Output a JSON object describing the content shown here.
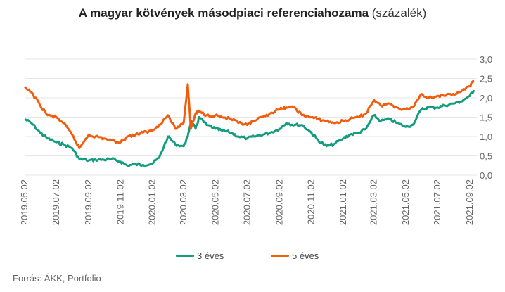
{
  "title": {
    "bold": "A magyar kötvények másodpiaci referenciahozama",
    "light": "(százalék)"
  },
  "source": "Forrás: ÁKK, Portfolio",
  "colors": {
    "series_3y": "#139c7e",
    "series_5y": "#f05d0e",
    "grid": "#e6e6e6",
    "text": "#666666"
  },
  "chart_data": {
    "type": "line",
    "title": "A magyar kötvények másodpiaci referenciahozama (százalék)",
    "xlabel": "",
    "ylabel": "",
    "ylim": [
      0,
      3
    ],
    "y_ticks": [
      "3,0",
      "2,5",
      "2,0",
      "1,5",
      "1,0",
      "0,5",
      "0,0"
    ],
    "x_ticks": [
      "2019.05.02",
      "2019.07.02",
      "2019.09.02",
      "2019.11.02",
      "2020.01.02",
      "2020.03.02",
      "2020.05.02",
      "2020.07.02",
      "2020.09.02",
      "2020.11.02",
      "2021.01.02",
      "2021.03.02",
      "2021.05.02",
      "2021.07.02",
      "2021.09.02"
    ],
    "grid": true,
    "legend_position": "bottom",
    "series": [
      {
        "name": "3 éves",
        "x": [
          "2019.05.02",
          "2019.05.15",
          "2019.06.01",
          "2019.06.15",
          "2019.07.02",
          "2019.07.15",
          "2019.08.01",
          "2019.08.15",
          "2019.09.02",
          "2019.09.15",
          "2019.10.01",
          "2019.10.15",
          "2019.11.02",
          "2019.11.15",
          "2019.12.01",
          "2019.12.15",
          "2020.01.02",
          "2020.01.15",
          "2020.02.01",
          "2020.02.15",
          "2020.03.02",
          "2020.03.10",
          "2020.03.16",
          "2020.03.25",
          "2020.04.01",
          "2020.04.15",
          "2020.05.02",
          "2020.05.15",
          "2020.06.01",
          "2020.06.15",
          "2020.07.02",
          "2020.07.15",
          "2020.08.01",
          "2020.08.15",
          "2020.09.02",
          "2020.09.15",
          "2020.10.01",
          "2020.10.15",
          "2020.11.02",
          "2020.11.15",
          "2020.12.01",
          "2020.12.15",
          "2021.01.02",
          "2021.01.15",
          "2021.02.01",
          "2021.02.15",
          "2021.03.02",
          "2021.03.15",
          "2021.04.01",
          "2021.04.15",
          "2021.05.02",
          "2021.05.15",
          "2021.06.01",
          "2021.06.15",
          "2021.07.02",
          "2021.07.15",
          "2021.08.01",
          "2021.08.15",
          "2021.09.02",
          "2021.09.10"
        ],
        "values": [
          1.45,
          1.35,
          1.1,
          0.95,
          0.85,
          0.8,
          0.7,
          0.42,
          0.38,
          0.4,
          0.4,
          0.42,
          0.35,
          0.25,
          0.28,
          0.27,
          0.3,
          0.45,
          1.0,
          0.8,
          0.75,
          1.0,
          1.4,
          1.2,
          1.5,
          1.3,
          1.2,
          1.15,
          1.1,
          1.0,
          0.95,
          1.0,
          1.05,
          1.1,
          1.2,
          1.35,
          1.3,
          1.3,
          1.1,
          0.9,
          0.75,
          0.8,
          0.95,
          1.05,
          1.1,
          1.2,
          1.55,
          1.4,
          1.45,
          1.35,
          1.25,
          1.3,
          1.7,
          1.75,
          1.75,
          1.8,
          1.85,
          1.9,
          2.05,
          2.2
        ]
      },
      {
        "name": "5 éves",
        "x": [
          "2019.05.02",
          "2019.05.15",
          "2019.06.01",
          "2019.06.15",
          "2019.07.02",
          "2019.07.15",
          "2019.08.01",
          "2019.08.15",
          "2019.09.02",
          "2019.09.15",
          "2019.10.01",
          "2019.10.15",
          "2019.11.02",
          "2019.11.15",
          "2019.12.01",
          "2019.12.15",
          "2020.01.02",
          "2020.01.15",
          "2020.02.01",
          "2020.02.15",
          "2020.03.02",
          "2020.03.10",
          "2020.03.16",
          "2020.03.25",
          "2020.04.01",
          "2020.04.15",
          "2020.05.02",
          "2020.05.15",
          "2020.06.01",
          "2020.06.15",
          "2020.07.02",
          "2020.07.15",
          "2020.08.01",
          "2020.08.15",
          "2020.09.02",
          "2020.09.15",
          "2020.10.01",
          "2020.10.15",
          "2020.11.02",
          "2020.11.15",
          "2020.12.01",
          "2020.12.15",
          "2021.01.02",
          "2021.01.15",
          "2021.02.01",
          "2021.02.15",
          "2021.03.02",
          "2021.03.15",
          "2021.04.01",
          "2021.04.15",
          "2021.05.02",
          "2021.05.15",
          "2021.06.01",
          "2021.06.15",
          "2021.07.02",
          "2021.07.15",
          "2021.08.01",
          "2021.08.15",
          "2021.09.02",
          "2021.09.10"
        ],
        "values": [
          2.25,
          2.15,
          1.8,
          1.55,
          1.5,
          1.35,
          1.05,
          0.7,
          1.05,
          1.0,
          0.95,
          0.9,
          0.85,
          1.0,
          1.05,
          1.1,
          1.15,
          1.3,
          1.55,
          1.2,
          1.35,
          2.35,
          1.2,
          1.6,
          1.65,
          1.55,
          1.55,
          1.5,
          1.45,
          1.35,
          1.3,
          1.4,
          1.5,
          1.6,
          1.7,
          1.75,
          1.75,
          1.55,
          1.5,
          1.45,
          1.4,
          1.35,
          1.4,
          1.45,
          1.5,
          1.6,
          1.95,
          1.8,
          1.85,
          1.75,
          1.7,
          1.75,
          2.1,
          2.0,
          2.05,
          2.05,
          2.1,
          2.15,
          2.3,
          2.45
        ]
      }
    ]
  },
  "legend": [
    {
      "label": "3 éves"
    },
    {
      "label": "5 éves"
    }
  ]
}
